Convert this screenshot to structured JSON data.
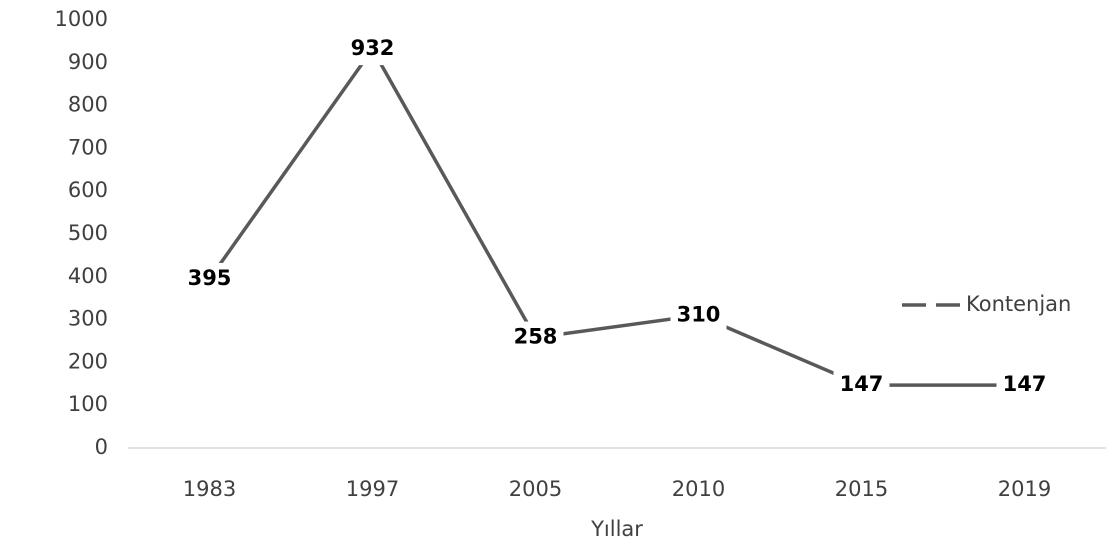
{
  "chart_data": {
    "type": "line",
    "x_label": "Yıllar",
    "categories": [
      "1983",
      "1997",
      "2005",
      "2010",
      "2015",
      "2019"
    ],
    "series": [
      {
        "name": "Kontenjan",
        "color": "#595959",
        "values": [
          395,
          932,
          258,
          310,
          147,
          147
        ]
      }
    ],
    "ylim": [
      0,
      1000
    ],
    "yticks": [
      0,
      100,
      200,
      300,
      400,
      500,
      600,
      700,
      800,
      900,
      1000
    ],
    "legend": "right",
    "grid": false
  }
}
